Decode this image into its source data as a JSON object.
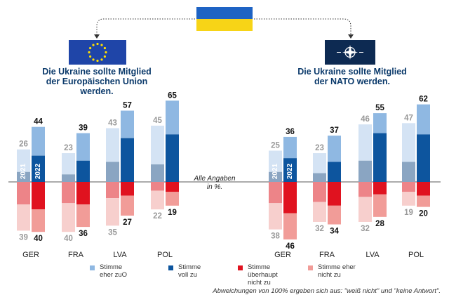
{
  "flag_colors": {
    "ukraine_top": "#1e63c4",
    "ukraine_bottom": "#f7d417",
    "eu": "#1f45a8",
    "eu_stars": "#ffdf00",
    "nato": "#0d2a52"
  },
  "colors": {
    "agree_rather_2021": "#d4e3f4",
    "agree_rather_2022": "#8fb8e2",
    "agree_full_2021": "#8aa5c2",
    "agree_full_2022": "#0d559e",
    "disagree_full_2021": "#ed8488",
    "disagree_full_2022": "#e0121f",
    "disagree_rather_2021": "#f7cfcd",
    "disagree_rather_2022": "#f19c98"
  },
  "note": "Alle Angaben\nin %.",
  "footnote": "Abweichungen von 100% ergeben sich aus: \"weiß nicht\" und \"keine Antwort\".",
  "legend": [
    {
      "label": "Stimme\neher zuO",
      "color": "#8fb8e2",
      "icon": "square"
    },
    {
      "label": "Stimme\nvoll zu",
      "color": "#0d559e",
      "icon": "square"
    },
    {
      "label": "Stimme\nüberhaupt\nnicht zu",
      "color": "#e0121f",
      "icon": "square"
    },
    {
      "label": "Stimme eher\nnicht zu",
      "color": "#f19c98",
      "icon": "square"
    }
  ],
  "panels": [
    {
      "title": "Die Ukraine sollte Mitglied\nder Europäischen Union\nwerden.",
      "flag": "eu-flag-icon"
    },
    {
      "title": "Die Ukraine sollte Mitglied\nder NATO werden.",
      "flag": "nato-flag-icon"
    }
  ],
  "chart_data": [
    {
      "type": "bar",
      "title": "Die Ukraine sollte Mitglied der Europäischen Union werden.",
      "categories": [
        "GER",
        "FRA",
        "LVA",
        "POL"
      ],
      "years": [
        "2021",
        "2022"
      ],
      "positive_totals": {
        "2021": [
          26,
          23,
          43,
          45
        ],
        "2022": [
          44,
          39,
          57,
          65
        ]
      },
      "negative_totals": {
        "2021": [
          39,
          40,
          35,
          22
        ],
        "2022": [
          40,
          36,
          27,
          19
        ]
      },
      "agree_full_est": {
        "2021": [
          8,
          6,
          16,
          14
        ],
        "2022": [
          21,
          17,
          35,
          38
        ]
      },
      "disagree_full_est": {
        "2021": [
          18,
          17,
          13,
          7
        ],
        "2022": [
          22,
          18,
          11,
          8
        ]
      }
    },
    {
      "type": "bar",
      "title": "Die Ukraine sollte Mitglied der NATO werden.",
      "categories": [
        "GER",
        "FRA",
        "LVA",
        "POL"
      ],
      "years": [
        "2021",
        "2022"
      ],
      "positive_totals": {
        "2021": [
          25,
          23,
          46,
          47
        ],
        "2022": [
          36,
          37,
          55,
          62
        ]
      },
      "negative_totals": {
        "2021": [
          38,
          32,
          32,
          19
        ],
        "2022": [
          46,
          34,
          28,
          20
        ]
      },
      "agree_full_est": {
        "2021": [
          8,
          7,
          17,
          16
        ],
        "2022": [
          19,
          16,
          39,
          38
        ]
      },
      "disagree_full_est": {
        "2021": [
          17,
          16,
          12,
          8
        ],
        "2022": [
          25,
          19,
          10,
          11
        ]
      }
    }
  ]
}
